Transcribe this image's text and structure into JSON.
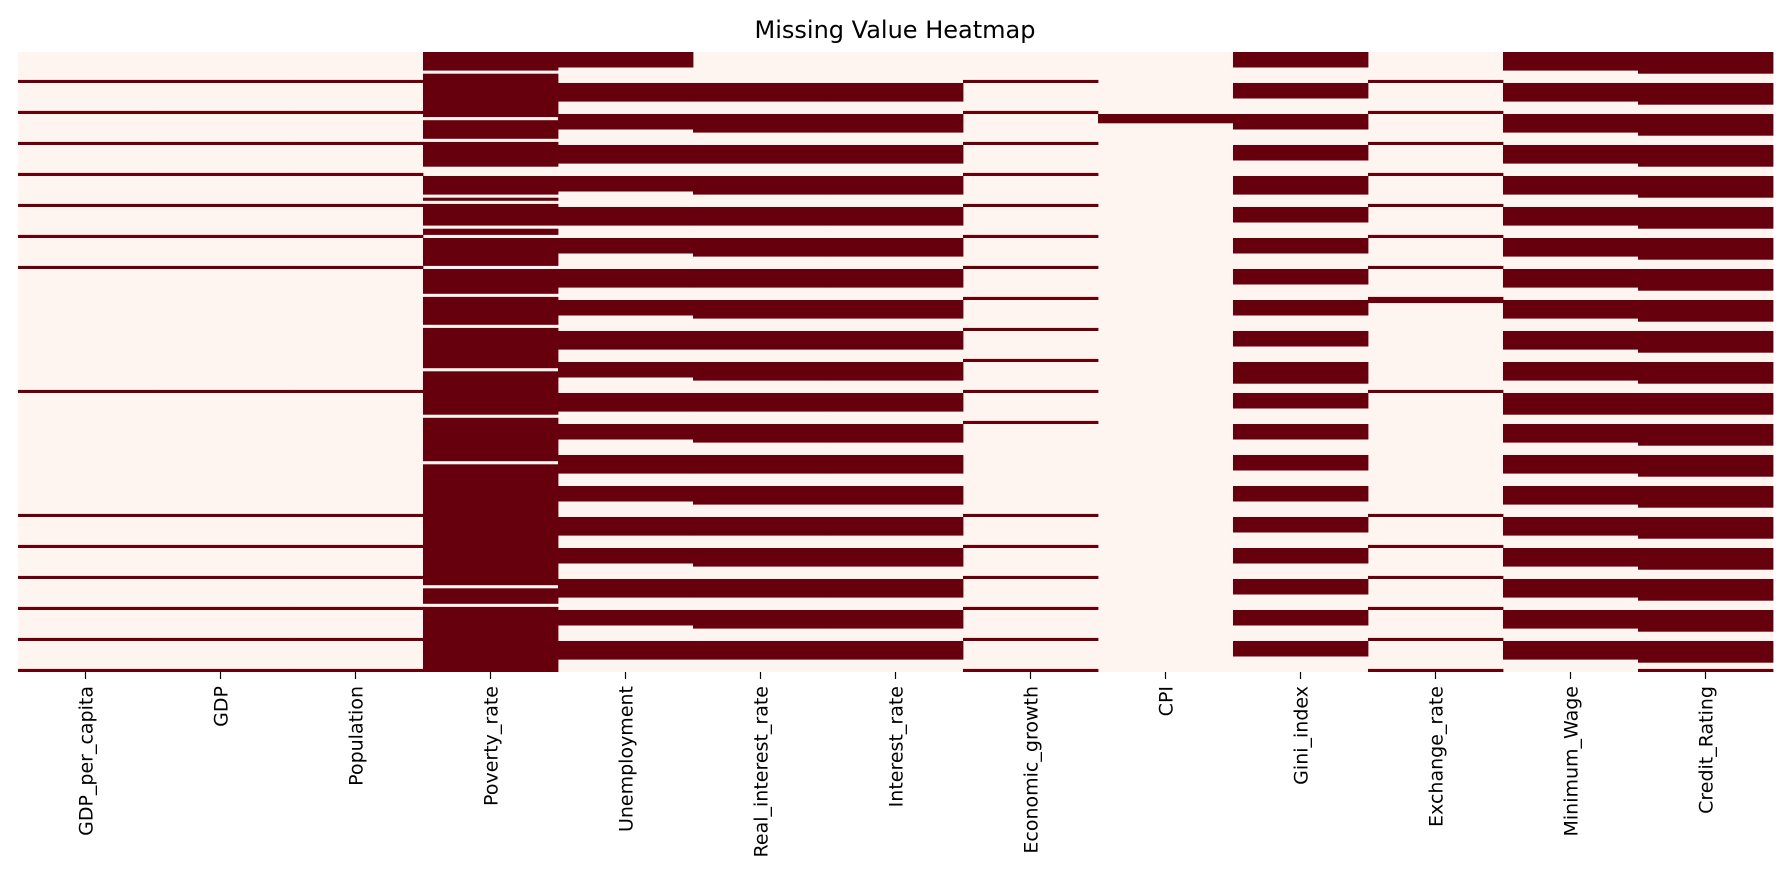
{
  "chart_data": {
    "type": "heatmap",
    "title": "Missing Value Heatmap",
    "xlabel": "",
    "ylabel": "",
    "colorbar": false,
    "colors": {
      "present": "#fff5f0",
      "missing": "#67000d"
    },
    "columns": [
      "GDP_per_capita",
      "GDP",
      "Population",
      "Poverty_rate",
      "Unemployment",
      "Real_interest_rate",
      "Interest_rate",
      "Economic_growth",
      "CPI",
      "Gini_index",
      "Exchange_rate",
      "Minimum_Wage",
      "Credit_Rating"
    ],
    "row_count": 200,
    "missing_rows": [
      [
        9,
        19,
        29,
        39,
        49,
        59,
        69,
        109,
        149,
        159,
        169,
        179,
        189,
        199
      ],
      [
        9,
        19,
        29,
        39,
        49,
        59,
        69,
        109,
        149,
        159,
        169,
        179,
        189,
        199
      ],
      [
        9,
        19,
        29,
        39,
        49,
        59,
        69,
        109,
        149,
        159,
        169,
        179,
        189,
        199
      ],
      [
        0,
        1,
        2,
        3,
        4,
        5,
        7,
        8,
        9,
        10,
        11,
        12,
        13,
        14,
        15,
        16,
        17,
        18,
        19,
        20,
        22,
        23,
        24,
        25,
        26,
        27,
        29,
        30,
        31,
        32,
        33,
        34,
        35,
        36,
        40,
        41,
        42,
        43,
        44,
        45,
        47,
        49,
        50,
        51,
        52,
        53,
        54,
        55,
        57,
        58,
        60,
        61,
        62,
        63,
        64,
        65,
        66,
        67,
        68,
        70,
        71,
        72,
        73,
        74,
        75,
        76,
        77,
        79,
        80,
        81,
        82,
        83,
        84,
        85,
        86,
        87,
        89,
        90,
        91,
        92,
        93,
        94,
        95,
        96,
        97,
        98,
        99,
        100,
        101,
        103,
        104,
        105,
        106,
        107,
        108,
        109,
        110,
        111,
        112,
        113,
        114,
        115,
        116,
        118,
        119,
        120,
        121,
        122,
        123,
        124,
        125,
        126,
        127,
        128,
        129,
        130,
        131,
        133,
        134,
        135,
        136,
        137,
        138,
        139,
        140,
        141,
        142,
        143,
        144,
        145,
        146,
        147,
        148,
        149,
        150,
        151,
        152,
        153,
        154,
        155,
        156,
        157,
        158,
        159,
        160,
        161,
        162,
        163,
        164,
        165,
        166,
        167,
        168,
        169,
        170,
        171,
        173,
        174,
        175,
        176,
        177,
        179,
        180,
        181,
        182,
        183,
        184,
        185,
        186,
        187,
        188,
        189,
        190,
        191,
        192,
        193,
        194,
        195,
        196,
        197,
        198,
        199
      ],
      [
        0,
        1,
        2,
        3,
        4,
        10,
        11,
        12,
        13,
        14,
        15,
        20,
        21,
        22,
        23,
        24,
        30,
        31,
        32,
        33,
        34,
        35,
        40,
        41,
        42,
        43,
        44,
        50,
        51,
        52,
        53,
        54,
        55,
        60,
        61,
        62,
        63,
        64,
        70,
        71,
        72,
        73,
        74,
        75,
        80,
        81,
        82,
        83,
        84,
        90,
        91,
        92,
        93,
        94,
        95,
        100,
        101,
        102,
        103,
        104,
        110,
        111,
        112,
        113,
        114,
        115,
        120,
        121,
        122,
        123,
        124,
        130,
        131,
        132,
        133,
        134,
        135,
        140,
        141,
        142,
        143,
        144,
        150,
        151,
        152,
        153,
        154,
        155,
        160,
        161,
        162,
        163,
        164,
        170,
        171,
        172,
        173,
        174,
        175,
        180,
        181,
        182,
        183,
        184,
        190,
        191,
        192,
        193,
        194,
        195
      ],
      [
        10,
        11,
        12,
        13,
        14,
        15,
        20,
        21,
        22,
        23,
        24,
        25,
        30,
        31,
        32,
        33,
        34,
        35,
        40,
        41,
        42,
        43,
        44,
        45,
        50,
        51,
        52,
        53,
        54,
        55,
        60,
        61,
        62,
        63,
        64,
        65,
        70,
        71,
        72,
        73,
        74,
        75,
        80,
        81,
        82,
        83,
        84,
        85,
        90,
        91,
        92,
        93,
        94,
        95,
        100,
        101,
        102,
        103,
        104,
        105,
        110,
        111,
        112,
        113,
        114,
        115,
        120,
        121,
        122,
        123,
        124,
        125,
        130,
        131,
        132,
        133,
        134,
        135,
        140,
        141,
        142,
        143,
        144,
        145,
        150,
        151,
        152,
        153,
        154,
        155,
        160,
        161,
        162,
        163,
        164,
        165,
        170,
        171,
        172,
        173,
        174,
        175,
        180,
        181,
        182,
        183,
        184,
        185,
        190,
        191,
        192,
        193,
        194,
        195
      ],
      [
        10,
        11,
        12,
        13,
        14,
        15,
        20,
        21,
        22,
        23,
        24,
        25,
        30,
        31,
        32,
        33,
        34,
        35,
        40,
        41,
        42,
        43,
        44,
        45,
        50,
        51,
        52,
        53,
        54,
        55,
        60,
        61,
        62,
        63,
        64,
        65,
        70,
        71,
        72,
        73,
        74,
        75,
        80,
        81,
        82,
        83,
        84,
        85,
        90,
        91,
        92,
        93,
        94,
        95,
        100,
        101,
        102,
        103,
        104,
        105,
        110,
        111,
        112,
        113,
        114,
        115,
        120,
        121,
        122,
        123,
        124,
        125,
        130,
        131,
        132,
        133,
        134,
        135,
        140,
        141,
        142,
        143,
        144,
        145,
        150,
        151,
        152,
        153,
        154,
        155,
        160,
        161,
        162,
        163,
        164,
        165,
        170,
        171,
        172,
        173,
        174,
        175,
        180,
        181,
        182,
        183,
        184,
        185,
        190,
        191,
        192,
        193,
        194,
        195
      ],
      [
        9,
        19,
        29,
        39,
        49,
        59,
        69,
        79,
        89,
        99,
        109,
        119,
        149,
        159,
        169,
        179,
        189,
        199
      ],
      [
        20,
        21,
        22
      ],
      [
        0,
        1,
        2,
        3,
        4,
        10,
        11,
        12,
        13,
        14,
        20,
        21,
        22,
        23,
        24,
        30,
        31,
        32,
        33,
        34,
        40,
        41,
        42,
        43,
        44,
        45,
        50,
        51,
        52,
        53,
        54,
        60,
        61,
        62,
        63,
        64,
        70,
        71,
        72,
        73,
        74,
        80,
        81,
        82,
        83,
        84,
        90,
        91,
        92,
        93,
        94,
        100,
        101,
        102,
        103,
        104,
        105,
        106,
        110,
        111,
        112,
        113,
        114,
        120,
        121,
        122,
        123,
        124,
        130,
        131,
        132,
        133,
        134,
        140,
        141,
        142,
        143,
        144,
        150,
        151,
        152,
        153,
        154,
        160,
        161,
        162,
        163,
        164,
        170,
        171,
        172,
        173,
        174,
        180,
        181,
        182,
        183,
        184,
        190,
        191,
        192,
        193,
        194
      ],
      [
        9,
        19,
        29,
        39,
        49,
        59,
        69,
        79,
        80,
        109,
        149,
        159,
        169,
        179,
        189,
        199
      ],
      [
        0,
        1,
        2,
        3,
        4,
        5,
        10,
        11,
        12,
        13,
        14,
        15,
        20,
        21,
        22,
        23,
        24,
        25,
        30,
        31,
        32,
        33,
        34,
        35,
        40,
        41,
        42,
        43,
        44,
        45,
        50,
        51,
        52,
        53,
        54,
        55,
        60,
        61,
        62,
        63,
        64,
        65,
        70,
        71,
        72,
        73,
        74,
        75,
        80,
        81,
        82,
        83,
        84,
        85,
        90,
        91,
        92,
        93,
        94,
        95,
        100,
        101,
        102,
        103,
        104,
        105,
        110,
        111,
        112,
        113,
        114,
        115,
        116,
        120,
        121,
        122,
        123,
        124,
        125,
        130,
        131,
        132,
        133,
        134,
        135,
        140,
        141,
        142,
        143,
        144,
        145,
        150,
        151,
        152,
        153,
        154,
        155,
        160,
        161,
        162,
        163,
        164,
        165,
        170,
        171,
        172,
        173,
        174,
        175,
        180,
        181,
        182,
        183,
        184,
        185,
        190,
        191,
        192,
        193,
        194,
        195
      ],
      [
        0,
        1,
        2,
        3,
        4,
        5,
        6,
        10,
        11,
        12,
        13,
        14,
        15,
        16,
        20,
        21,
        22,
        23,
        24,
        25,
        26,
        30,
        31,
        32,
        33,
        34,
        35,
        36,
        40,
        41,
        42,
        43,
        44,
        45,
        46,
        50,
        51,
        52,
        53,
        54,
        55,
        56,
        60,
        61,
        62,
        63,
        64,
        65,
        66,
        70,
        71,
        72,
        73,
        74,
        75,
        76,
        80,
        81,
        82,
        83,
        84,
        85,
        86,
        90,
        91,
        92,
        93,
        94,
        95,
        96,
        100,
        101,
        102,
        103,
        104,
        105,
        106,
        110,
        111,
        112,
        113,
        114,
        115,
        116,
        120,
        121,
        122,
        123,
        124,
        125,
        126,
        130,
        131,
        132,
        133,
        134,
        135,
        136,
        140,
        141,
        142,
        143,
        144,
        145,
        146,
        150,
        151,
        152,
        153,
        154,
        155,
        156,
        160,
        161,
        162,
        163,
        164,
        165,
        166,
        170,
        171,
        172,
        173,
        174,
        175,
        176,
        180,
        181,
        182,
        183,
        184,
        185,
        186,
        190,
        191,
        192,
        193,
        194,
        195,
        196,
        199
      ]
    ]
  }
}
